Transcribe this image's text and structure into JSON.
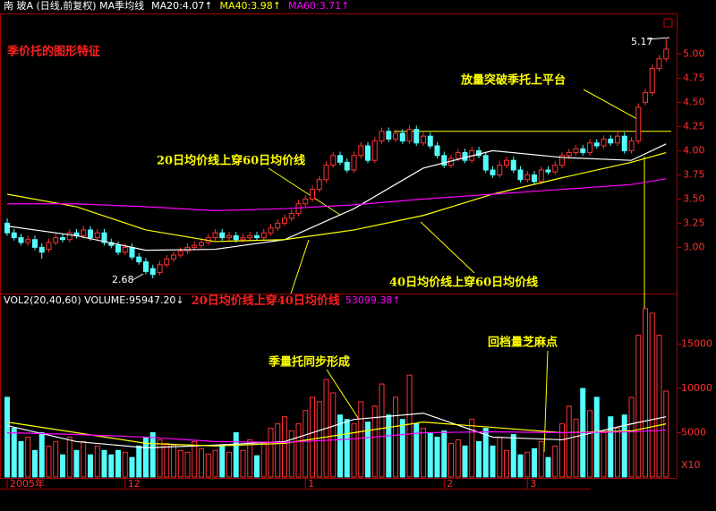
{
  "chart_data": {
    "type": "candlestick",
    "header": [
      "南 玻A (日线,前复权) MA季均线",
      "MA20:4.07↑",
      "MA40:3.98↑",
      "MA60:3.71↑"
    ],
    "volume_header": [
      "VOL2(20,40,60) VOLUME:95947.20↓",
      "53099.38↑"
    ],
    "title": "季价托的图形特征",
    "annotations": {
      "breakout": "放量突破季托上平台",
      "cross_20_60": "20日均价线上穿60日均价线",
      "cross_20_40": "20日均价线上穿40日均价线",
      "cross_40_60": "40日均价线上穿60日均价线",
      "volume_support": "季量托同步形成",
      "pullback": "回档量芝麻点",
      "high": "5.17",
      "low": "2.68"
    },
    "platform": 4.2,
    "candles": [
      [
        3.25,
        3.3,
        3.12,
        3.15
      ],
      [
        3.15,
        3.19,
        3.07,
        3.1
      ],
      [
        3.1,
        3.14,
        3.02,
        3.05
      ],
      [
        3.05,
        3.12,
        3.02,
        3.08
      ],
      [
        3.08,
        3.12,
        2.97,
        3.0
      ],
      [
        3.0,
        3.04,
        2.88,
        2.95
      ],
      [
        2.98,
        3.09,
        2.95,
        3.05
      ],
      [
        3.05,
        3.14,
        3.02,
        3.1
      ],
      [
        3.1,
        3.14,
        3.05,
        3.08
      ],
      [
        3.08,
        3.19,
        3.05,
        3.15
      ],
      [
        3.15,
        3.19,
        3.09,
        3.12
      ],
      [
        3.12,
        3.22,
        3.09,
        3.18
      ],
      [
        3.18,
        3.22,
        3.07,
        3.1
      ],
      [
        3.1,
        3.19,
        3.07,
        3.15
      ],
      [
        3.15,
        3.19,
        3.02,
        3.05
      ],
      [
        3.05,
        3.09,
        2.99,
        3.02
      ],
      [
        3.02,
        3.06,
        2.92,
        2.95
      ],
      [
        2.95,
        3.04,
        2.92,
        3.0
      ],
      [
        3.0,
        3.04,
        2.87,
        2.9
      ],
      [
        2.9,
        2.94,
        2.82,
        2.85
      ],
      [
        2.85,
        2.89,
        2.72,
        2.75
      ],
      [
        2.78,
        2.82,
        2.68,
        2.72
      ],
      [
        2.74,
        2.86,
        2.71,
        2.82
      ],
      [
        2.82,
        2.92,
        2.79,
        2.88
      ],
      [
        2.88,
        2.96,
        2.85,
        2.92
      ],
      [
        2.92,
        3.0,
        2.89,
        2.96
      ],
      [
        2.96,
        3.04,
        2.93,
        3.0
      ],
      [
        3.0,
        3.06,
        2.97,
        3.02
      ],
      [
        3.02,
        3.09,
        2.99,
        3.05
      ],
      [
        3.05,
        3.14,
        3.02,
        3.1
      ],
      [
        3.1,
        3.19,
        3.07,
        3.15
      ],
      [
        3.15,
        3.19,
        3.07,
        3.1
      ],
      [
        3.1,
        3.16,
        3.07,
        3.12
      ],
      [
        3.12,
        3.16,
        3.05,
        3.08
      ],
      [
        3.08,
        3.14,
        3.05,
        3.1
      ],
      [
        3.1,
        3.16,
        3.07,
        3.12
      ],
      [
        3.12,
        3.16,
        3.07,
        3.1
      ],
      [
        3.1,
        3.19,
        3.07,
        3.15
      ],
      [
        3.15,
        3.24,
        3.12,
        3.2
      ],
      [
        3.2,
        3.29,
        3.17,
        3.25
      ],
      [
        3.25,
        3.34,
        3.22,
        3.3
      ],
      [
        3.3,
        3.39,
        3.27,
        3.35
      ],
      [
        3.35,
        3.49,
        3.32,
        3.45
      ],
      [
        3.45,
        3.54,
        3.42,
        3.5
      ],
      [
        3.5,
        3.64,
        3.47,
        3.6
      ],
      [
        3.6,
        3.74,
        3.57,
        3.7
      ],
      [
        3.7,
        3.89,
        3.67,
        3.85
      ],
      [
        3.85,
        3.99,
        3.82,
        3.95
      ],
      [
        3.95,
        3.99,
        3.85,
        3.88
      ],
      [
        3.88,
        3.92,
        3.77,
        3.8
      ],
      [
        3.8,
        3.99,
        3.77,
        3.95
      ],
      [
        3.95,
        4.09,
        3.92,
        4.05
      ],
      [
        4.05,
        4.09,
        3.87,
        3.9
      ],
      [
        3.9,
        4.14,
        3.87,
        4.1
      ],
      [
        4.1,
        4.24,
        4.07,
        4.2
      ],
      [
        4.2,
        4.24,
        4.09,
        4.12
      ],
      [
        4.12,
        4.22,
        4.09,
        4.18
      ],
      [
        4.18,
        4.22,
        4.07,
        4.1
      ],
      [
        4.1,
        4.26,
        4.07,
        4.22
      ],
      [
        4.22,
        4.26,
        4.05,
        4.08
      ],
      [
        4.08,
        4.19,
        4.05,
        4.15
      ],
      [
        4.15,
        4.19,
        4.02,
        4.05
      ],
      [
        4.05,
        4.09,
        3.92,
        3.95
      ],
      [
        3.95,
        3.99,
        3.82,
        3.85
      ],
      [
        3.85,
        3.96,
        3.82,
        3.92
      ],
      [
        3.92,
        4.02,
        3.89,
        3.98
      ],
      [
        3.98,
        4.02,
        3.87,
        3.9
      ],
      [
        3.9,
        4.04,
        3.87,
        4.0
      ],
      [
        4.0,
        4.04,
        3.92,
        3.95
      ],
      [
        3.95,
        3.99,
        3.77,
        3.8
      ],
      [
        3.8,
        3.84,
        3.72,
        3.75
      ],
      [
        3.75,
        3.89,
        3.72,
        3.85
      ],
      [
        3.85,
        3.94,
        3.82,
        3.9
      ],
      [
        3.9,
        3.94,
        3.77,
        3.8
      ],
      [
        3.8,
        3.84,
        3.67,
        3.7
      ],
      [
        3.7,
        3.79,
        3.67,
        3.75
      ],
      [
        3.75,
        3.79,
        3.65,
        3.68
      ],
      [
        3.68,
        3.84,
        3.65,
        3.8
      ],
      [
        3.8,
        3.84,
        3.75,
        3.78
      ],
      [
        3.78,
        3.89,
        3.75,
        3.85
      ],
      [
        3.85,
        3.99,
        3.82,
        3.95
      ],
      [
        3.95,
        4.02,
        3.92,
        3.98
      ],
      [
        3.98,
        4.06,
        3.95,
        4.02
      ],
      [
        4.02,
        4.06,
        3.95,
        3.98
      ],
      [
        3.98,
        4.12,
        3.95,
        4.08
      ],
      [
        4.08,
        4.12,
        4.02,
        4.05
      ],
      [
        4.05,
        4.16,
        4.02,
        4.12
      ],
      [
        4.12,
        4.16,
        4.05,
        4.08
      ],
      [
        4.08,
        4.19,
        4.05,
        4.15
      ],
      [
        4.15,
        4.19,
        3.97,
        4.0
      ],
      [
        4.0,
        4.14,
        3.97,
        4.1
      ],
      [
        4.1,
        4.49,
        4.07,
        4.45
      ],
      [
        4.5,
        4.64,
        4.47,
        4.6
      ],
      [
        4.6,
        4.89,
        4.57,
        4.85
      ],
      [
        4.85,
        4.99,
        4.82,
        4.95
      ],
      [
        4.95,
        5.17,
        4.92,
        5.05
      ]
    ],
    "volume": [
      9000,
      5500,
      4000,
      4500,
      3000,
      5000,
      3500,
      4000,
      2500,
      4500,
      3000,
      4000,
      2500,
      3500,
      3000,
      2500,
      3000,
      2800,
      2200,
      3500,
      4500,
      5000,
      4200,
      3800,
      3600,
      3000,
      2800,
      4000,
      3200,
      2600,
      3000,
      3600,
      2800,
      5000,
      3000,
      4200,
      2400,
      3800,
      5500,
      6000,
      6800,
      5200,
      6000,
      7500,
      9000,
      8500,
      11000,
      9500,
      7000,
      6500,
      6000,
      8500,
      6200,
      8000,
      10500,
      7000,
      9000,
      6500,
      11500,
      6000,
      5500,
      5000,
      4500,
      5200,
      3800,
      4200,
      3500,
      6500,
      4000,
      5500,
      3500,
      4500,
      3000,
      4800,
      2500,
      2800,
      3200,
      4000,
      2200,
      3500,
      6000,
      8000,
      6500,
      10000,
      7500,
      9000,
      5000,
      6800,
      5500,
      7000,
      9000,
      16000,
      19000,
      18500,
      16000,
      9700
    ],
    "ma_x": [
      0,
      10,
      20,
      30,
      40,
      50,
      60,
      70,
      80,
      90,
      95
    ],
    "series": [
      {
        "name": "MA20",
        "color": "#ffffff",
        "values": [
          3.22,
          3.12,
          2.97,
          2.98,
          3.08,
          3.4,
          3.82,
          4.0,
          3.93,
          3.9,
          4.07
        ]
      },
      {
        "name": "MA40",
        "color": "#ffff00",
        "values": [
          3.55,
          3.42,
          3.18,
          3.06,
          3.08,
          3.18,
          3.33,
          3.55,
          3.72,
          3.88,
          3.98
        ]
      },
      {
        "name": "MA60",
        "color": "#ff00ff",
        "values": [
          3.45,
          3.45,
          3.42,
          3.38,
          3.4,
          3.44,
          3.5,
          3.55,
          3.6,
          3.65,
          3.71
        ]
      }
    ],
    "volume_series": [
      {
        "name": "VMA20",
        "color": "#ffffff",
        "values": [
          5800,
          4000,
          3300,
          3600,
          4000,
          6500,
          7200,
          4500,
          4200,
          6000,
          6800
        ]
      },
      {
        "name": "VMA40",
        "color": "#ffff00",
        "values": [
          6200,
          5000,
          3800,
          3500,
          3800,
          5000,
          6200,
          5600,
          5000,
          5200,
          6000
        ]
      },
      {
        "name": "VMA60",
        "color": "#ff00ff",
        "values": [
          5000,
          4800,
          4500,
          4000,
          3900,
          4300,
          5000,
          5100,
          5000,
          5100,
          5300
        ]
      }
    ],
    "ylim": [
      2.55,
      5.42
    ],
    "yticks": [
      {
        "value": 3,
        "label": "3.00"
      },
      {
        "value": 3.25,
        "label": "3.25"
      },
      {
        "value": 3.5,
        "label": "3.50"
      },
      {
        "value": 3.75,
        "label": "3.75"
      },
      {
        "value": 4,
        "label": "4.00"
      },
      {
        "value": 4.25,
        "label": "4.25"
      },
      {
        "value": 4.5,
        "label": "4.50"
      },
      {
        "value": 4.75,
        "label": "4.75"
      },
      {
        "value": 5,
        "label": "5.00"
      }
    ],
    "y2lim": [
      0,
      19500
    ],
    "y2ticks": [
      5000,
      10000,
      15000
    ],
    "y2_unit": "X10",
    "xticks": [
      {
        "value": 0,
        "label": "2005年"
      },
      {
        "value": 17,
        "label": "12"
      },
      {
        "value": 43,
        "label": "1"
      },
      {
        "value": 63,
        "label": "2"
      },
      {
        "value": 75,
        "label": "3"
      }
    ]
  }
}
